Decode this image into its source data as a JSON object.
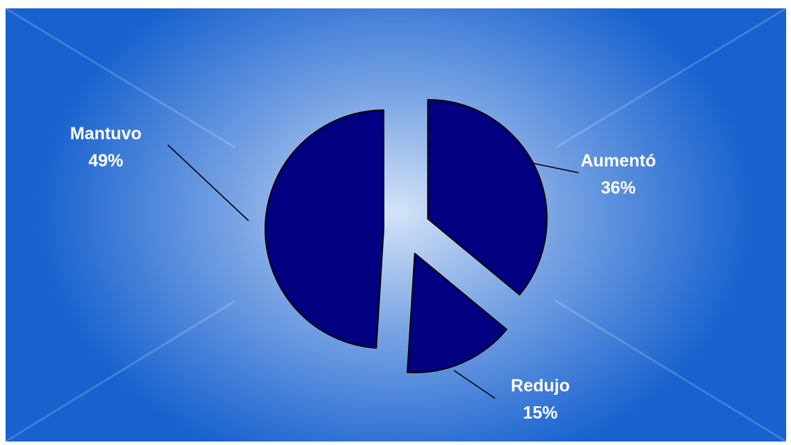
{
  "chart_data": {
    "type": "pie",
    "exploded": true,
    "legend": "none",
    "slices": [
      {
        "label": "Aumentó",
        "value": 36,
        "percent_label": "36%"
      },
      {
        "label": "Redujo",
        "value": 15,
        "percent_label": "15%"
      },
      {
        "label": "Mantuvo",
        "value": 49,
        "percent_label": "49%"
      }
    ]
  },
  "colors": {
    "slice_fill": "#000080",
    "slice_outline": "#000000",
    "label_text": "#ffffff",
    "background_edge": "#1862cf",
    "background_center": "#deeafa"
  }
}
